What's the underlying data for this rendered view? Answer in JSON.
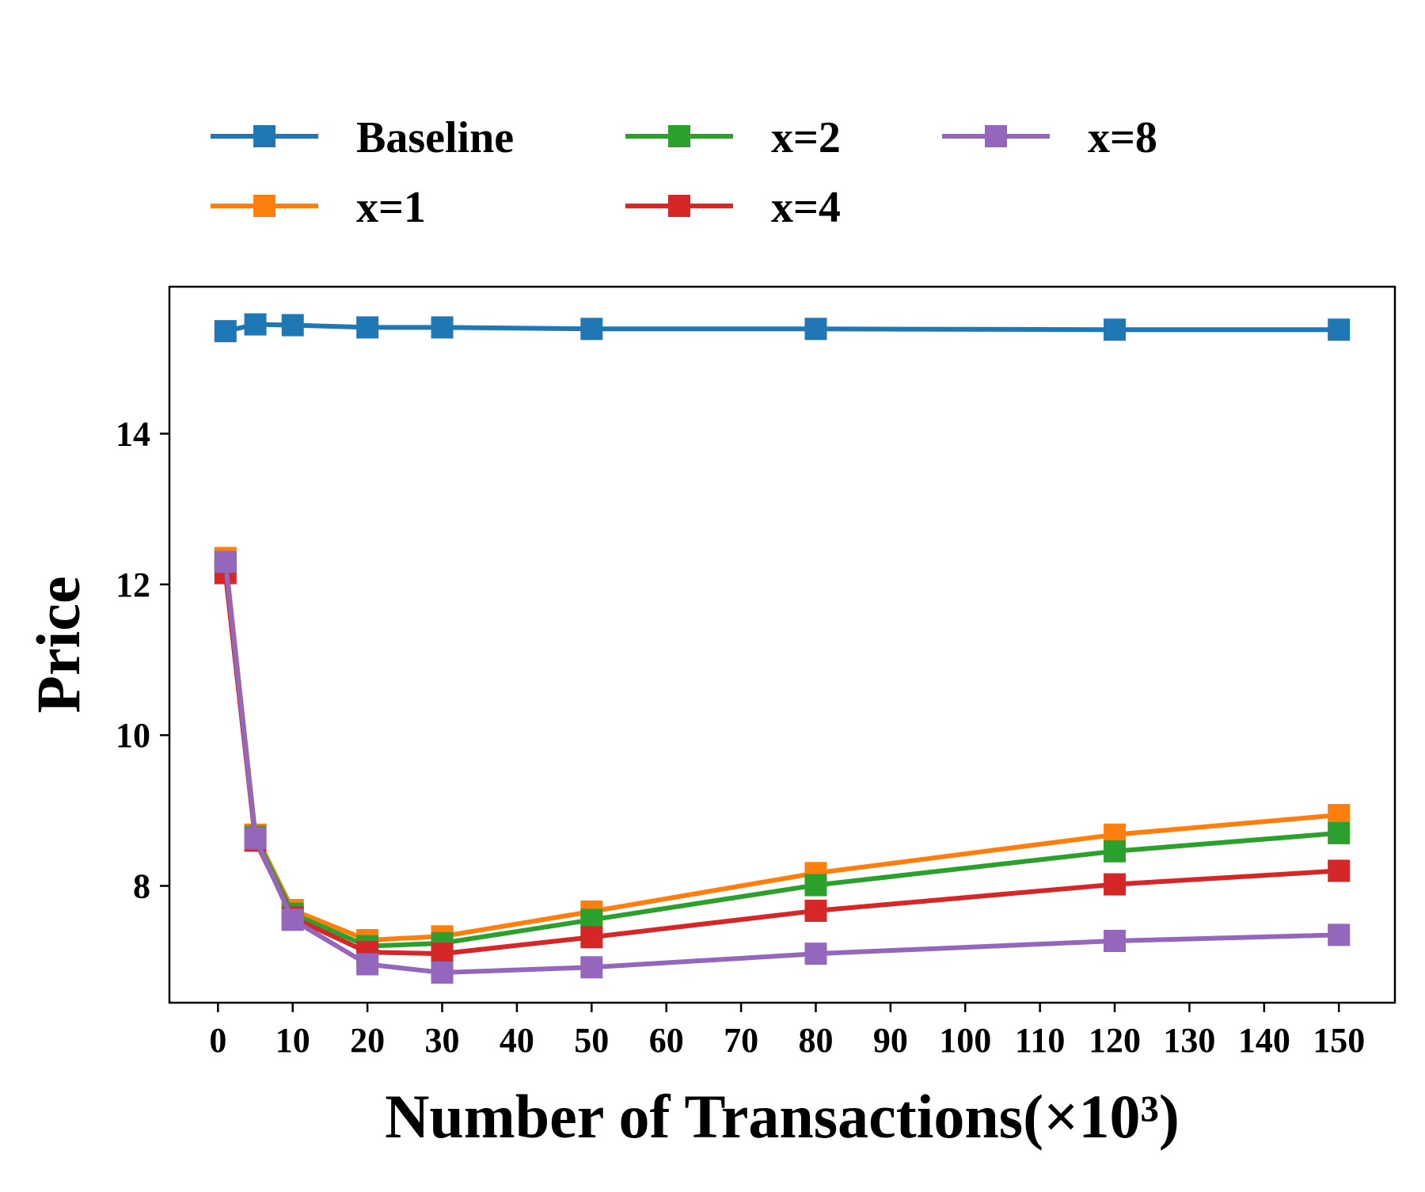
{
  "chart_data": {
    "type": "line",
    "title": "",
    "xlabel": "Number of Transactions(×10³)",
    "ylabel": "Price",
    "x": [
      1,
      5,
      10,
      20,
      30,
      50,
      80,
      120,
      150
    ],
    "xlim": [
      -6.5,
      157.5
    ],
    "ylim": [
      6.45,
      15.95
    ],
    "xticks": [
      0,
      10,
      20,
      30,
      40,
      50,
      60,
      70,
      80,
      90,
      100,
      110,
      120,
      130,
      140,
      150
    ],
    "xtick_labels": [
      "0",
      "10",
      "20",
      "30",
      "40",
      "50",
      "60",
      "70",
      "80",
      "90",
      "100",
      "110",
      "120",
      "130",
      "140",
      "150"
    ],
    "yticks": [
      8,
      10,
      12,
      14
    ],
    "ytick_labels": [
      "8",
      "10",
      "12",
      "14"
    ],
    "grid": false,
    "legend_position": "top, outside plot, 3 columns",
    "marker": "square",
    "series": [
      {
        "name": "Baseline",
        "color": "#1f77b4",
        "values": [
          15.36,
          15.45,
          15.44,
          15.41,
          15.41,
          15.39,
          15.39,
          15.38,
          15.38
        ]
      },
      {
        "name": "x=1",
        "color": "#ff7f0e",
        "values": [
          12.35,
          8.68,
          7.68,
          7.28,
          7.33,
          7.66,
          8.17,
          8.68,
          8.94
        ]
      },
      {
        "name": "x=2",
        "color": "#2ca02c",
        "values": [
          12.28,
          8.65,
          7.63,
          7.2,
          7.24,
          7.55,
          8.01,
          8.46,
          8.7
        ]
      },
      {
        "name": "x=4",
        "color": "#d62728",
        "values": [
          12.15,
          8.6,
          7.58,
          7.12,
          7.1,
          7.32,
          7.67,
          8.02,
          8.2
        ]
      },
      {
        "name": "x=8",
        "color": "#9467bd",
        "values": [
          12.3,
          8.63,
          7.55,
          6.96,
          6.85,
          6.92,
          7.1,
          7.27,
          7.35
        ]
      }
    ]
  }
}
